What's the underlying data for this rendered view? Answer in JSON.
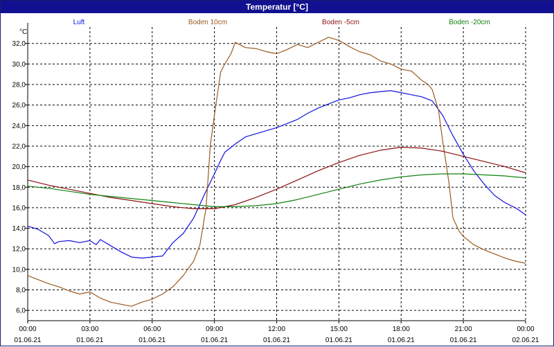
{
  "window": {
    "title": "Temperatur [°C]"
  },
  "chart_data": {
    "type": "line",
    "title": "Temperatur [°C]",
    "ylabel": "°C",
    "ylim": [
      5.0,
      33.6
    ],
    "xlim_hours": [
      0,
      24
    ],
    "grid": true,
    "y_ticks": [
      "6,0",
      "8,0",
      "10,0",
      "12,0",
      "14,0",
      "16,0",
      "18,0",
      "20,0",
      "22,0",
      "24,0",
      "26,0",
      "28,0",
      "30,0",
      "32,0"
    ],
    "x_ticks": [
      {
        "time": "00:00",
        "date": "01.06.21"
      },
      {
        "time": "03:00",
        "date": "01.06.21"
      },
      {
        "time": "06:00",
        "date": "01.06.21"
      },
      {
        "time": "09:00",
        "date": "01.06.21"
      },
      {
        "time": "12:00",
        "date": "01.06.21"
      },
      {
        "time": "15:00",
        "date": "01.06.21"
      },
      {
        "time": "18:00",
        "date": "01.06.21"
      },
      {
        "time": "21:00",
        "date": "01.06.21"
      },
      {
        "time": "00:00",
        "date": "02.06.21"
      }
    ],
    "legend_position": "top",
    "series": [
      {
        "name": "Luft",
        "color": "#1010e0",
        "x": [
          0,
          0.5,
          1,
          1.3,
          1.5,
          2,
          2.5,
          3,
          3.3,
          3.5,
          4,
          4.5,
          5,
          5.5,
          6,
          6.5,
          7,
          7.5,
          8,
          8.5,
          9,
          9.3,
          9.5,
          10,
          10.5,
          11,
          11.5,
          12,
          12.5,
          13,
          13.5,
          14,
          14.5,
          15,
          15.5,
          16,
          16.5,
          17,
          17.5,
          18,
          18.5,
          19,
          19.5,
          20,
          20.5,
          21,
          21.5,
          22,
          22.5,
          23,
          23.5,
          23.8,
          24
        ],
        "y": [
          14.2,
          13.9,
          13.3,
          12.5,
          12.7,
          12.8,
          12.6,
          12.8,
          12.4,
          12.9,
          12.3,
          11.7,
          11.2,
          11.1,
          11.2,
          11.3,
          12.6,
          13.5,
          15.0,
          17.2,
          19.3,
          20.6,
          21.4,
          22.2,
          22.9,
          23.2,
          23.5,
          23.8,
          24.2,
          24.6,
          25.2,
          25.7,
          26.1,
          26.5,
          26.7,
          27.0,
          27.2,
          27.3,
          27.4,
          27.2,
          27.0,
          26.8,
          26.4,
          25.0,
          23.0,
          21.2,
          19.6,
          18.3,
          17.2,
          16.5,
          16.0,
          15.6,
          15.3
        ]
      },
      {
        "name": "Boden 10cm",
        "color": "#9a5a20",
        "x": [
          0,
          0.5,
          1,
          1.5,
          2,
          2.5,
          3,
          3.5,
          4,
          4.5,
          5,
          5.5,
          6,
          6.5,
          7,
          7.5,
          8,
          8.3,
          8.6,
          8.8,
          9,
          9.3,
          9.5,
          9.8,
          10,
          10.5,
          11,
          11.5,
          12,
          12.5,
          13,
          13.5,
          14,
          14.5,
          15,
          15.5,
          16,
          16.5,
          17,
          17.5,
          18,
          18.5,
          19,
          19.3,
          19.5,
          19.8,
          20,
          20.3,
          20.5,
          20.8,
          21,
          21.5,
          22,
          22.5,
          23,
          23.5,
          24
        ],
        "y": [
          9.4,
          9.0,
          8.6,
          8.3,
          7.9,
          7.6,
          7.8,
          7.2,
          6.8,
          6.6,
          6.4,
          6.8,
          7.1,
          7.6,
          8.3,
          9.4,
          10.8,
          12.4,
          16.0,
          22.0,
          25.0,
          29.2,
          30.0,
          31.0,
          32.1,
          31.6,
          31.5,
          31.2,
          31.0,
          31.4,
          31.9,
          31.6,
          32.1,
          32.6,
          32.3,
          31.7,
          31.2,
          30.9,
          30.3,
          30.0,
          29.5,
          29.3,
          28.4,
          28.0,
          27.5,
          25.5,
          22.5,
          18.5,
          15.0,
          13.7,
          13.2,
          12.4,
          11.9,
          11.5,
          11.1,
          10.8,
          10.6
        ]
      },
      {
        "name": "Boden -5cm",
        "color": "#8b1010",
        "x": [
          0,
          1,
          2,
          3,
          4,
          5,
          6,
          7,
          8,
          9,
          10,
          11,
          12,
          13,
          14,
          15,
          16,
          17,
          18,
          19,
          20,
          21,
          22,
          23,
          24
        ],
        "y": [
          18.7,
          18.2,
          17.8,
          17.4,
          17.0,
          16.7,
          16.4,
          16.1,
          15.9,
          15.9,
          16.3,
          17.0,
          17.8,
          18.7,
          19.6,
          20.4,
          21.1,
          21.6,
          21.9,
          21.8,
          21.5,
          21.0,
          20.5,
          20.0,
          19.4
        ]
      },
      {
        "name": "Boden -20cm",
        "color": "#108010",
        "x": [
          0,
          1,
          2,
          3,
          4,
          5,
          6,
          7,
          8,
          9,
          10,
          11,
          12,
          13,
          14,
          15,
          16,
          17,
          18,
          19,
          20,
          21,
          22,
          23,
          24
        ],
        "y": [
          18.1,
          17.9,
          17.6,
          17.3,
          17.1,
          16.9,
          16.7,
          16.5,
          16.3,
          16.1,
          16.1,
          16.2,
          16.4,
          16.8,
          17.3,
          17.8,
          18.3,
          18.7,
          19.0,
          19.2,
          19.3,
          19.3,
          19.2,
          19.1,
          18.9
        ]
      }
    ]
  }
}
